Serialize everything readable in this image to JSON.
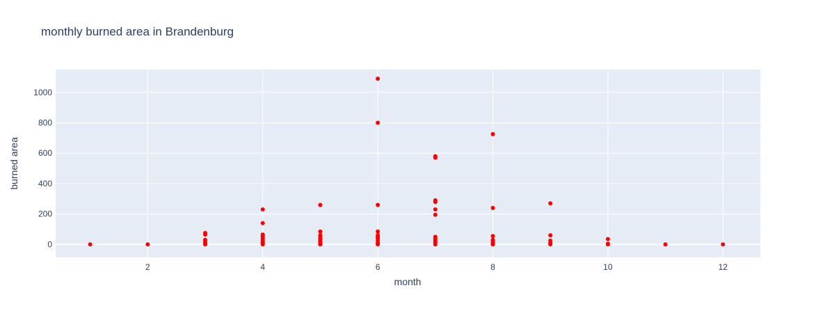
{
  "chart_data": {
    "type": "scatter",
    "title": "monthly burned area in Brandenburg",
    "xlabel": "month",
    "ylabel": "burned area",
    "xlim": [
      0.4,
      12.65
    ],
    "ylim": [
      -85,
      1150
    ],
    "xticks": [
      2,
      4,
      6,
      8,
      10,
      12
    ],
    "yticks": [
      0,
      200,
      400,
      600,
      800,
      1000
    ],
    "grid": true,
    "marker_color": "#ff0000",
    "plot_bgcolor": "#e5ecf6",
    "grid_color": "#ffffff",
    "series": [
      {
        "x": [
          1,
          2,
          3,
          3,
          3,
          3,
          3,
          3,
          4,
          4,
          4,
          4,
          4,
          4,
          4,
          4,
          4,
          4,
          4,
          5,
          5,
          5,
          5,
          5,
          5,
          5,
          5,
          5,
          5,
          6,
          6,
          6,
          6,
          6,
          6,
          6,
          6,
          6,
          6,
          7,
          7,
          7,
          7,
          7,
          7,
          7,
          7,
          7,
          7,
          7,
          7,
          8,
          8,
          8,
          8,
          8,
          8,
          8,
          8,
          9,
          9,
          9,
          9,
          9,
          10,
          10,
          10,
          11,
          12
        ],
        "y": [
          0,
          0,
          75,
          65,
          30,
          20,
          10,
          0,
          230,
          140,
          65,
          55,
          45,
          35,
          25,
          15,
          10,
          5,
          0,
          260,
          85,
          60,
          50,
          40,
          30,
          20,
          10,
          5,
          0,
          1090,
          800,
          260,
          85,
          60,
          50,
          40,
          25,
          10,
          0,
          580,
          570,
          290,
          280,
          230,
          195,
          50,
          40,
          30,
          20,
          10,
          0,
          725,
          240,
          55,
          30,
          20,
          10,
          5,
          0,
          270,
          60,
          25,
          10,
          0,
          35,
          5,
          0,
          0,
          0
        ]
      }
    ]
  }
}
